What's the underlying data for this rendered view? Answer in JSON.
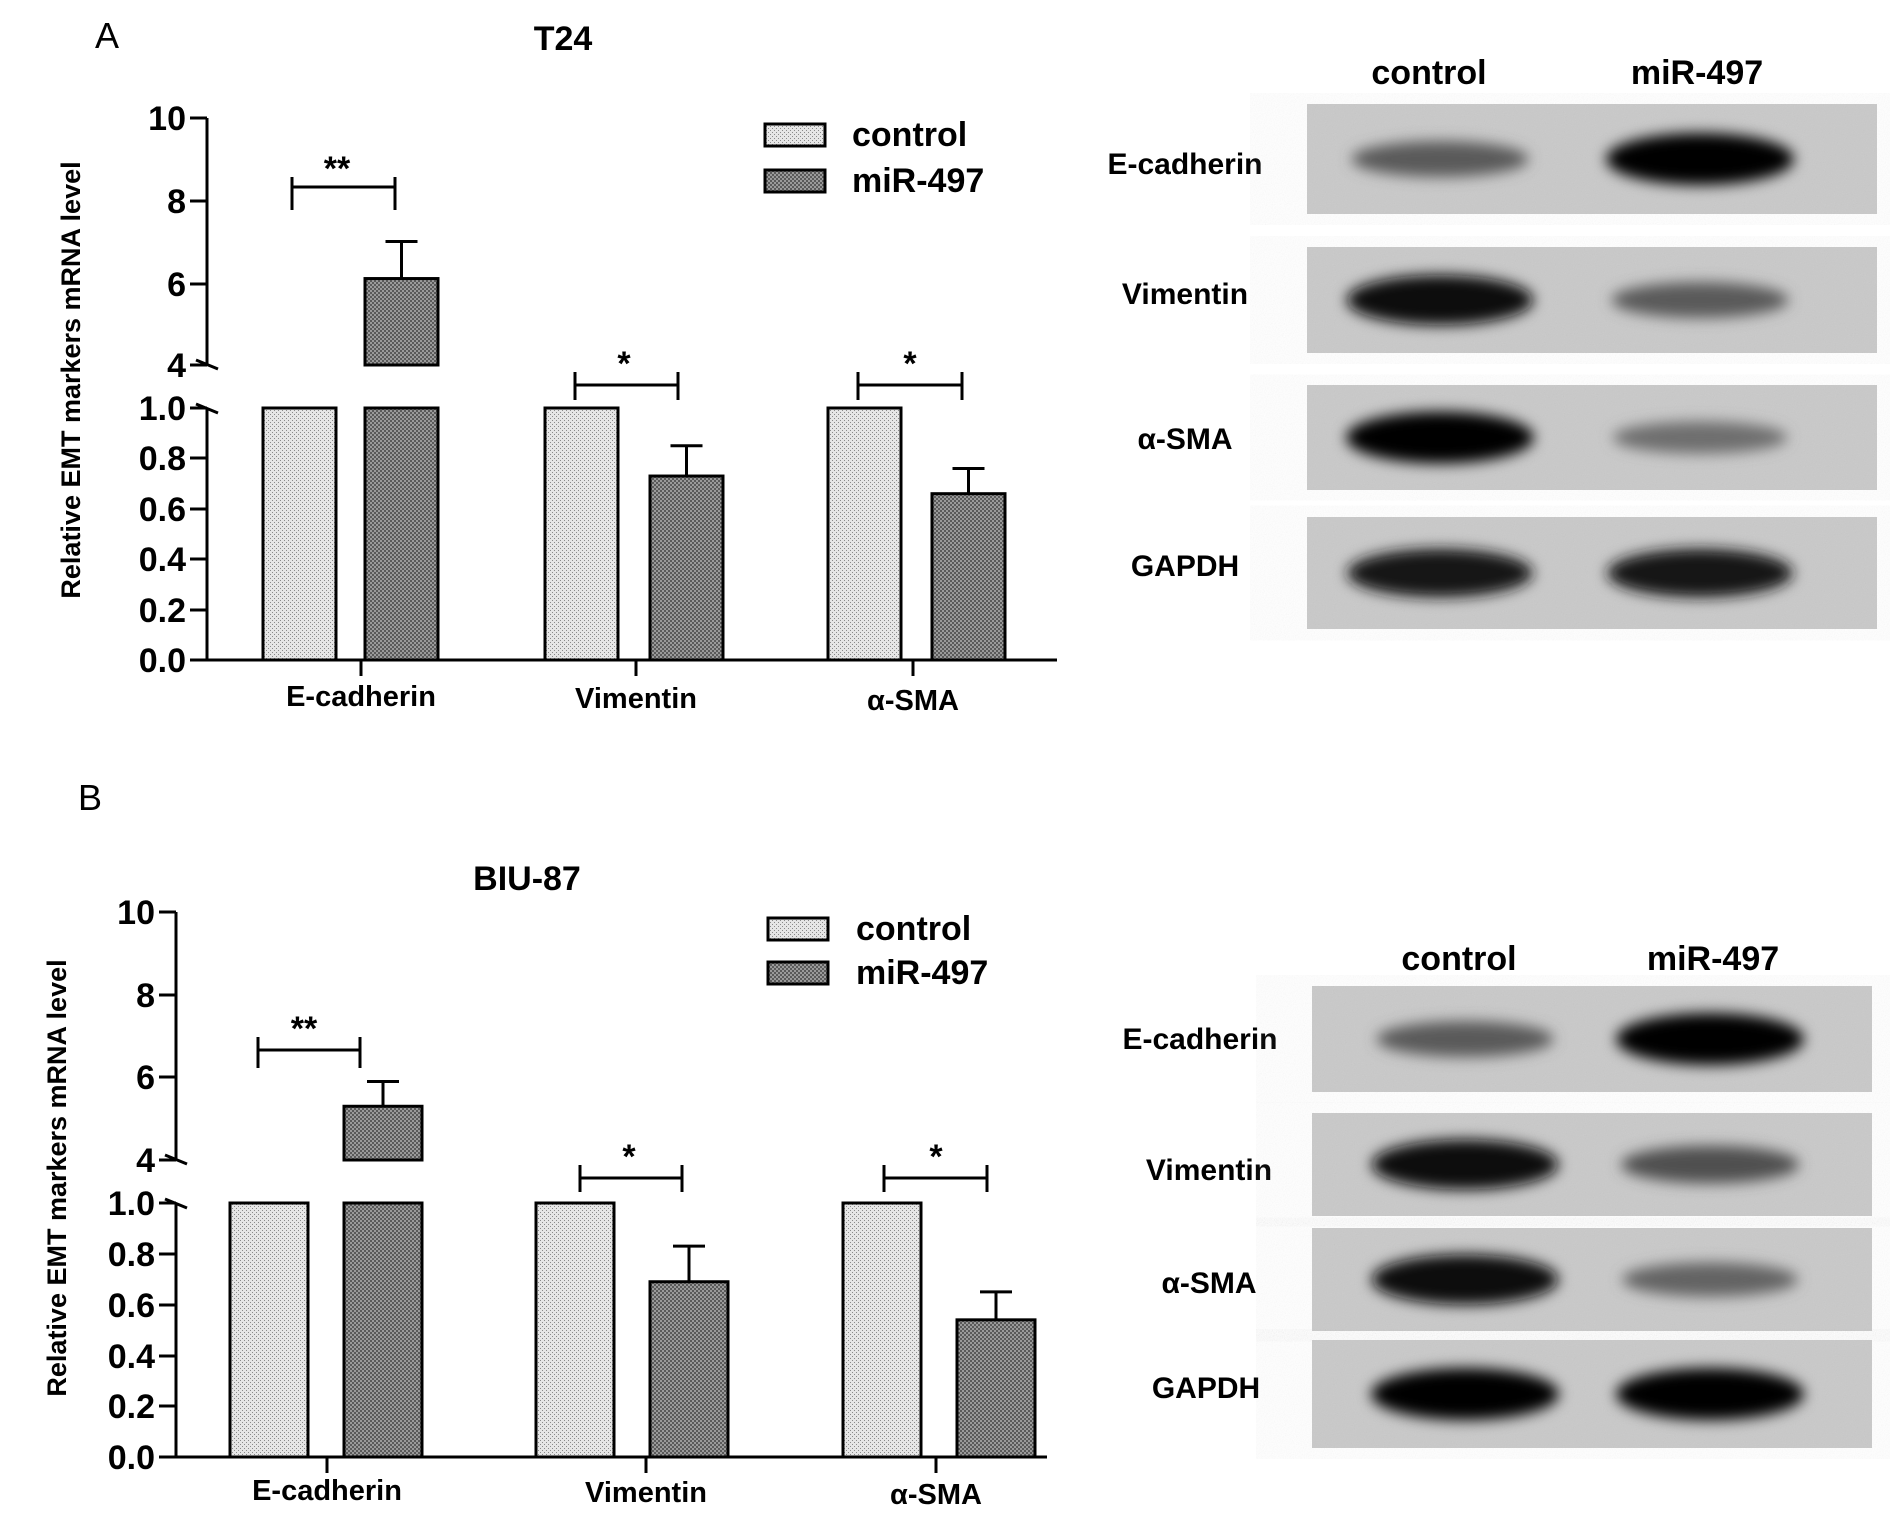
{
  "figure": {
    "panels": [
      {
        "label": "A",
        "title": "T24",
        "ylabel": "Relative EMT markers mRNA  level",
        "legend": [
          "control",
          "miR-497"
        ],
        "blot": {
          "columns": [
            "control",
            "miR-497"
          ],
          "rows": [
            {
              "name": "E-cadherin",
              "intensity": [
                0.55,
                1.0
              ]
            },
            {
              "name": "Vimentin",
              "intensity": [
                0.95,
                0.55
              ]
            },
            {
              "name": "α-SMA",
              "intensity": [
                1.0,
                0.45
              ]
            },
            {
              "name": "GAPDH",
              "intensity": [
                0.9,
                0.9
              ]
            }
          ]
        }
      },
      {
        "label": "B",
        "title": "BIU-87",
        "ylabel": "Relative EMT markers mRNA  level",
        "legend": [
          "control",
          "miR-497"
        ],
        "blot": {
          "columns": [
            "control",
            "miR-497"
          ],
          "rows": [
            {
              "name": "E-cadherin",
              "intensity": [
                0.55,
                1.0
              ]
            },
            {
              "name": "Vimentin",
              "intensity": [
                0.95,
                0.6
              ]
            },
            {
              "name": "α-SMA",
              "intensity": [
                0.95,
                0.5
              ]
            },
            {
              "name": "GAPDH",
              "intensity": [
                1.0,
                1.0
              ]
            }
          ]
        }
      }
    ]
  },
  "chart_data": [
    {
      "type": "bar",
      "title": "T24",
      "ylabel": "Relative EMT markers mRNA  level",
      "categories": [
        "E-cadherin",
        "Vimentin",
        "α-SMA"
      ],
      "series": [
        {
          "name": "control",
          "values": [
            1.0,
            1.0,
            1.0
          ],
          "errors": [
            0,
            0,
            0
          ]
        },
        {
          "name": "miR-497",
          "values": [
            6.1,
            0.73,
            0.66
          ],
          "errors": [
            0.9,
            0.12,
            0.1
          ]
        }
      ],
      "axis_break": {
        "lower": [
          0,
          1.0
        ],
        "upper": [
          4,
          10
        ]
      },
      "yticks_lower": [
        "0.0",
        "0.2",
        "0.4",
        "0.6",
        "0.8",
        "1.0"
      ],
      "yticks_upper": [
        "4",
        "6",
        "8",
        "10"
      ],
      "significance": [
        "**",
        "*",
        "*"
      ],
      "legend_position": "top-right",
      "grid": false
    },
    {
      "type": "bar",
      "title": "BIU-87",
      "ylabel": "Relative EMT markers mRNA  level",
      "categories": [
        "E-cadherin",
        "Vimentin",
        "α-SMA"
      ],
      "series": [
        {
          "name": "control",
          "values": [
            1.0,
            1.0,
            1.0
          ],
          "errors": [
            0,
            0,
            0
          ]
        },
        {
          "name": "miR-497",
          "values": [
            5.3,
            0.69,
            0.54
          ],
          "errors": [
            0.6,
            0.14,
            0.11
          ]
        }
      ],
      "axis_break": {
        "lower": [
          0,
          1.0
        ],
        "upper": [
          4,
          10
        ]
      },
      "yticks_lower": [
        "0.0",
        "0.2",
        "0.4",
        "0.6",
        "0.8",
        "1.0"
      ],
      "yticks_upper": [
        "4",
        "6",
        "8",
        "10"
      ],
      "significance": [
        "**",
        "*",
        "*"
      ],
      "legend_position": "top-right",
      "grid": false
    }
  ]
}
